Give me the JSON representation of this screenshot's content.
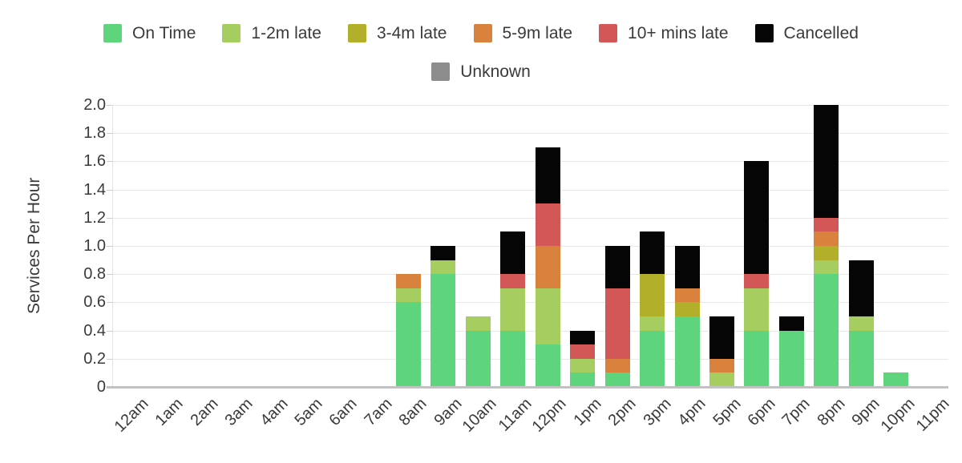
{
  "chart_data": {
    "type": "bar",
    "stacked": true,
    "title": "",
    "xlabel": "",
    "ylabel": "Services Per Hour",
    "ylim": [
      0,
      2.0
    ],
    "grid": true,
    "legend_position": "top",
    "yticks": [
      "2.0",
      "1.8",
      "1.6",
      "1.4",
      "1.2",
      "1.0",
      "0.8",
      "0.6",
      "0.4",
      "0.2",
      "0"
    ],
    "categories": [
      "12am",
      "1am",
      "2am",
      "3am",
      "4am",
      "5am",
      "6am",
      "7am",
      "8am",
      "9am",
      "10am",
      "11am",
      "12pm",
      "1pm",
      "2pm",
      "3pm",
      "4pm",
      "5pm",
      "6pm",
      "7pm",
      "8pm",
      "9pm",
      "10pm",
      "11pm"
    ],
    "series": [
      {
        "name": "On Time",
        "color": "#5ed47d",
        "values": [
          0,
          0,
          0,
          0,
          0,
          0,
          0,
          0,
          0.6,
          0.8,
          0.4,
          0.4,
          0.3,
          0.1,
          0.1,
          0.4,
          0.5,
          0,
          0.4,
          0.4,
          0.8,
          0.4,
          0.1,
          0
        ]
      },
      {
        "name": "1-2m late",
        "color": "#a5cd60",
        "values": [
          0,
          0,
          0,
          0,
          0,
          0,
          0,
          0,
          0.1,
          0.1,
          0.1,
          0.3,
          0.4,
          0.1,
          0,
          0.1,
          0,
          0.1,
          0.3,
          0,
          0.1,
          0.1,
          0,
          0
        ]
      },
      {
        "name": "3-4m late",
        "color": "#b2b02b",
        "values": [
          0,
          0,
          0,
          0,
          0,
          0,
          0,
          0,
          0,
          0,
          0,
          0,
          0,
          0,
          0,
          0.3,
          0.1,
          0,
          0,
          0,
          0.1,
          0,
          0,
          0
        ]
      },
      {
        "name": "5-9m late",
        "color": "#d8823d",
        "values": [
          0,
          0,
          0,
          0,
          0,
          0,
          0,
          0,
          0.1,
          0,
          0,
          0,
          0.3,
          0,
          0.1,
          0,
          0.1,
          0.1,
          0,
          0,
          0.1,
          0,
          0,
          0
        ]
      },
      {
        "name": "10+ mins late",
        "color": "#d45757",
        "values": [
          0,
          0,
          0,
          0,
          0,
          0,
          0,
          0,
          0,
          0,
          0,
          0.1,
          0.3,
          0.1,
          0.5,
          0,
          0,
          0,
          0.1,
          0,
          0.1,
          0,
          0,
          0
        ]
      },
      {
        "name": "Cancelled",
        "color": "#050505",
        "values": [
          0,
          0,
          0,
          0,
          0,
          0,
          0,
          0,
          0,
          0.1,
          0,
          0.3,
          0.4,
          0.1,
          0.3,
          0.3,
          0.3,
          0.3,
          0.8,
          0.1,
          0.8,
          0.4,
          0,
          0
        ]
      },
      {
        "name": "Unknown",
        "color": "#8c8c8c",
        "values": [
          0,
          0,
          0,
          0,
          0,
          0,
          0,
          0,
          0,
          0,
          0,
          0,
          0,
          0,
          0,
          0,
          0,
          0,
          0,
          0,
          0,
          0,
          0,
          0
        ]
      }
    ],
    "legend_rows": [
      [
        0,
        1,
        2,
        3,
        4,
        5
      ],
      [
        6
      ]
    ]
  },
  "colors": {
    "text": "#3a3a3a",
    "gridline": "#e8e8e8",
    "axis_line": "#c2c2c2"
  }
}
